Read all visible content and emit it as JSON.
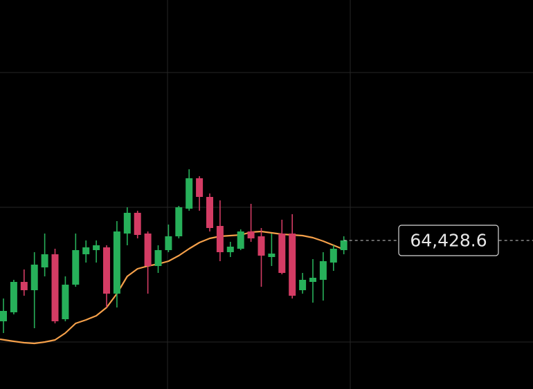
{
  "chart_data": {
    "type": "candlestick",
    "ylim": [
      63891.1,
      65298.6
    ],
    "up_color": "#27b05a",
    "down_color": "#d43c64",
    "open": [
      64136.1,
      64168.6,
      64278.6,
      64248.6,
      64331.1,
      64378.6,
      64143.6,
      64268.6,
      64378.6,
      64393.6,
      64403.6,
      64236.1,
      64453.6,
      64528.6,
      64453.6,
      64336.1,
      64393.6,
      64443.6,
      64543.6,
      64653.6,
      64586.1,
      64481.1,
      64386.1,
      64398.6,
      64461.1,
      64443.6,
      64368.6,
      64453.6,
      64453.6,
      64248.6,
      64278.6,
      64286.1,
      64348.6,
      64393.6
    ],
    "high": [
      64218.6,
      64286.1,
      64323.6,
      64386.1,
      64453.6,
      64398.6,
      64298.6,
      64453.6,
      64428.6,
      64428.6,
      64411.1,
      64498.6,
      64548.6,
      64536.1,
      64461.1,
      64411.1,
      64486.1,
      64553.6,
      64686.1,
      64661.1,
      64598.6,
      64573.6,
      64423.6,
      64468.6,
      64561.1,
      64473.6,
      64453.6,
      64503.6,
      64523.6,
      64311.1,
      64361.1,
      64386.1,
      64411.1,
      64443.6
    ],
    "low": [
      64093.6,
      64161.1,
      64228.6,
      64111.1,
      64298.6,
      64128.6,
      64136.1,
      64261.1,
      64348.6,
      64348.6,
      64186.1,
      64186.1,
      64411.1,
      64436.1,
      64236.1,
      64311.1,
      64386.1,
      64436.1,
      64536.1,
      64536.1,
      64461.1,
      64353.6,
      64368.6,
      64393.6,
      64423.6,
      64261.1,
      64336.1,
      64306.1,
      64218.6,
      64236.1,
      64203.6,
      64211.1,
      64318.6,
      64378.6
    ],
    "close": [
      64173.6,
      64278.6,
      64248.6,
      64341.1,
      64378.6,
      64136.1,
      64268.6,
      64393.6,
      64403.6,
      64411.1,
      64236.1,
      64461.1,
      64528.6,
      64448.6,
      64336.1,
      64393.6,
      64443.6,
      64548.6,
      64653.6,
      64586.1,
      64473.6,
      64386.1,
      64406.1,
      64461.1,
      64436.1,
      64373.6,
      64381.1,
      64311.1,
      64228.6,
      64286.1,
      64293.6,
      64353.6,
      64398.6,
      64428.6
    ],
    "moving_average": {
      "color": "#f5a04a",
      "values": [
        64071.1,
        64063.6,
        64058.6,
        64056.1,
        64061.1,
        64068.6,
        64093.6,
        64128.6,
        64141.1,
        64156.1,
        64186.1,
        64236.1,
        64298.6,
        64326.1,
        64336.1,
        64343.6,
        64353.6,
        64373.6,
        64398.6,
        64421.1,
        64436.1,
        64443.6,
        64446.1,
        64448.6,
        64458.6,
        64461.1,
        64456.1,
        64451.1,
        64448.6,
        64446.1,
        64438.6,
        64426.1,
        64411.1,
        64396.1
      ]
    },
    "last_price": {
      "value": 64428.6,
      "label": "64,428.6"
    }
  }
}
